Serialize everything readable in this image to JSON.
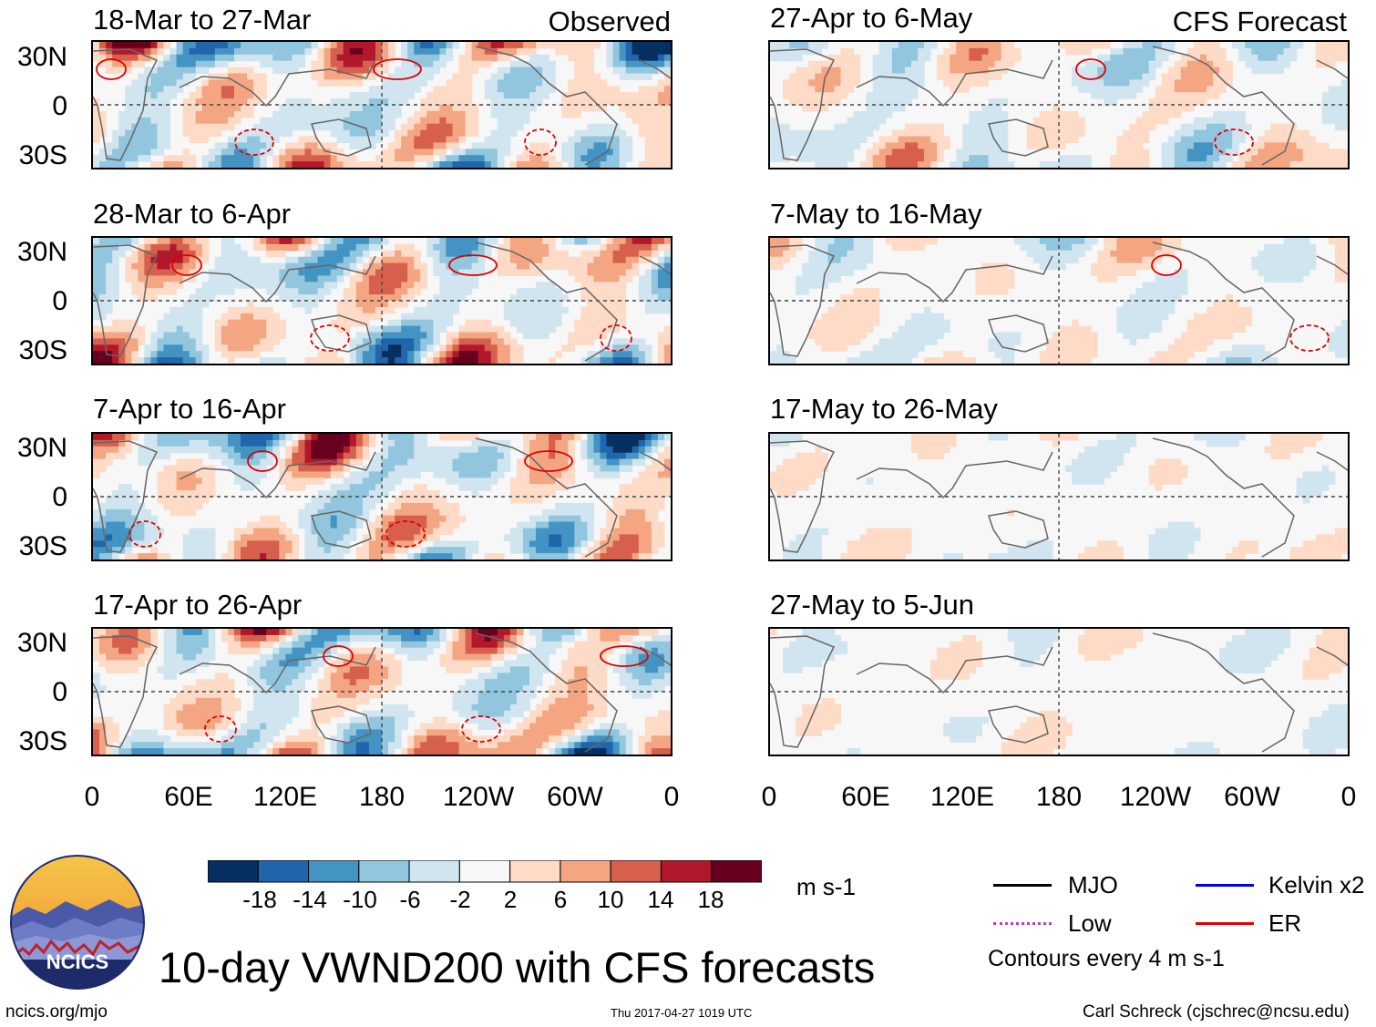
{
  "chart_data": {
    "type": "heatmap",
    "title": "10-day VWND200 with CFS forecasts",
    "variable": "VWND200",
    "units": "m s-1",
    "columns": [
      {
        "name": "Observed",
        "panels": [
          "18-Mar to 27-Mar",
          "28-Mar to 6-Apr",
          "7-Apr to 16-Apr",
          "17-Apr to 26-Apr"
        ]
      },
      {
        "name": "CFS Forecast",
        "panels": [
          "27-Apr to 6-May",
          "7-May to 16-May",
          "17-May to 26-May",
          "27-May to 5-Jun"
        ]
      }
    ],
    "lat_ticks": [
      "30N",
      "0",
      "30S"
    ],
    "lat_range": [
      -40,
      40
    ],
    "lon_ticks": [
      "0",
      "60E",
      "120E",
      "180",
      "120W",
      "60W",
      "0"
    ],
    "lon_range": [
      0,
      360
    ],
    "colorbar": {
      "levels": [
        -18,
        -14,
        -10,
        -6,
        -2,
        2,
        6,
        10,
        14,
        18
      ],
      "labels": [
        "-18",
        "-14",
        "-10",
        "-6",
        "-2",
        "2",
        "6",
        "10",
        "14",
        "18"
      ],
      "colors": [
        "#053061",
        "#2166ac",
        "#4393c3",
        "#92c5de",
        "#d1e5f0",
        "#f7f7f7",
        "#fddbc7",
        "#f4a582",
        "#d6604d",
        "#b2182b",
        "#67001f"
      ]
    },
    "legend": [
      {
        "label": "MJO",
        "color": "#000000"
      },
      {
        "label": "Kelvin x2",
        "color": "#0000e6"
      },
      {
        "label": "Low",
        "color": "#b040d0"
      },
      {
        "label": "ER",
        "color": "#e00000"
      }
    ],
    "contour_note": "Contours every 4 m s-1"
  },
  "footer": {
    "logo_text": "NCICS",
    "left": "ncics.org/mjo",
    "center": "Thu 2017-04-27 1019 UTC",
    "right": "Carl Schreck (cjschrec@ncsu.edu)"
  }
}
